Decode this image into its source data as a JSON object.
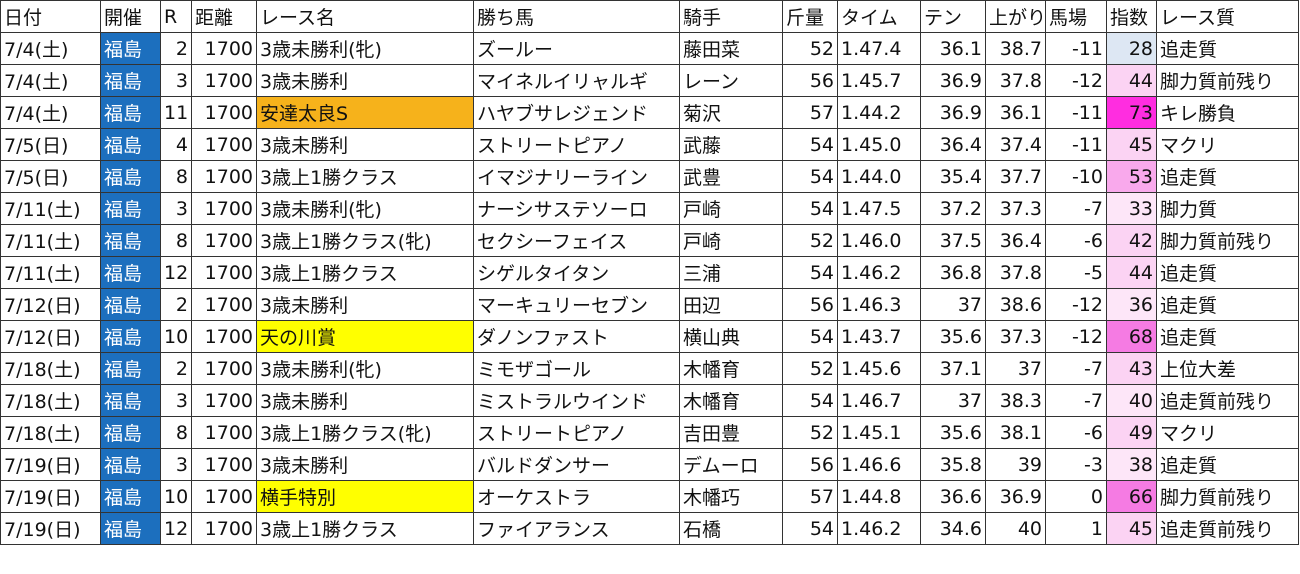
{
  "headers": [
    "日付",
    "開催",
    "R",
    "距離",
    "レース名",
    "勝ち馬",
    "騎手",
    "斤量",
    "タイム",
    "テン",
    "上がり",
    "馬場",
    "指数",
    "レース質"
  ],
  "colors": {
    "venue_bg": "#1c6fbe",
    "grade_orange": "#f6b21b",
    "grade_yellow": "#ffff00",
    "index_low": "#dde7f3",
    "index_scale": [
      "#fde6f8",
      "#fbd3f3",
      "#f9a9ec",
      "#f57be3",
      "#ff2de0"
    ]
  },
  "rows": [
    {
      "date": "7/4(土)",
      "venue": "福島",
      "r": "2",
      "dist": "1700",
      "race": "3歳未勝利(牝)",
      "winner": "ズールー",
      "jockey": "藤田菜",
      "weight": "52",
      "time": "1.47.4",
      "ten": "36.1",
      "agari": "38.7",
      "baba": "-11",
      "index": "28",
      "quality": "追走質",
      "index_color": "#dde7f3",
      "race_color": ""
    },
    {
      "date": "7/4(土)",
      "venue": "福島",
      "r": "3",
      "dist": "1700",
      "race": "3歳未勝利",
      "winner": "マイネルイリャルギ",
      "jockey": "レーン",
      "weight": "56",
      "time": "1.45.7",
      "ten": "36.9",
      "agari": "37.8",
      "baba": "-12",
      "index": "44",
      "quality": "脚力質前残り",
      "index_color": "#fbd3f3",
      "race_color": ""
    },
    {
      "date": "7/4(土)",
      "venue": "福島",
      "r": "11",
      "dist": "1700",
      "race": "安達太良S",
      "winner": "ハヤブサレジェンド",
      "jockey": "菊沢",
      "weight": "57",
      "time": "1.44.2",
      "ten": "36.9",
      "agari": "36.1",
      "baba": "-11",
      "index": "73",
      "quality": "キレ勝負",
      "index_color": "#ff2de0",
      "race_color": "#f6b21b"
    },
    {
      "date": "7/5(日)",
      "venue": "福島",
      "r": "4",
      "dist": "1700",
      "race": "3歳未勝利",
      "winner": "ストリートピアノ",
      "jockey": "武藤",
      "weight": "54",
      "time": "1.45.0",
      "ten": "36.4",
      "agari": "37.4",
      "baba": "-11",
      "index": "45",
      "quality": "マクリ",
      "index_color": "#fbd3f3",
      "race_color": ""
    },
    {
      "date": "7/5(日)",
      "venue": "福島",
      "r": "8",
      "dist": "1700",
      "race": "3歳上1勝クラス",
      "winner": "イマジナリーライン",
      "jockey": "武豊",
      "weight": "54",
      "time": "1.44.0",
      "ten": "35.4",
      "agari": "37.7",
      "baba": "-10",
      "index": "53",
      "quality": "追走質",
      "index_color": "#f9a9ec",
      "race_color": ""
    },
    {
      "date": "7/11(土)",
      "venue": "福島",
      "r": "3",
      "dist": "1700",
      "race": "3歳未勝利(牝)",
      "winner": "ナーシサステソーロ",
      "jockey": "戸崎",
      "weight": "54",
      "time": "1.47.5",
      "ten": "37.2",
      "agari": "37.3",
      "baba": "-7",
      "index": "33",
      "quality": "脚力質",
      "index_color": "#fde6f8",
      "race_color": ""
    },
    {
      "date": "7/11(土)",
      "venue": "福島",
      "r": "8",
      "dist": "1700",
      "race": "3歳上1勝クラス(牝)",
      "winner": "セクシーフェイス",
      "jockey": "戸崎",
      "weight": "52",
      "time": "1.46.0",
      "ten": "37.5",
      "agari": "36.4",
      "baba": "-6",
      "index": "42",
      "quality": "脚力質前残り",
      "index_color": "#fbd3f3",
      "race_color": ""
    },
    {
      "date": "7/11(土)",
      "venue": "福島",
      "r": "12",
      "dist": "1700",
      "race": "3歳上1勝クラス",
      "winner": "シゲルタイタン",
      "jockey": "三浦",
      "weight": "54",
      "time": "1.46.2",
      "ten": "36.8",
      "agari": "37.8",
      "baba": "-5",
      "index": "44",
      "quality": "追走質",
      "index_color": "#fbd3f3",
      "race_color": ""
    },
    {
      "date": "7/12(日)",
      "venue": "福島",
      "r": "2",
      "dist": "1700",
      "race": "3歳未勝利",
      "winner": "マーキュリーセブン",
      "jockey": "田辺",
      "weight": "56",
      "time": "1.46.3",
      "ten": "37",
      "agari": "38.6",
      "baba": "-12",
      "index": "36",
      "quality": "追走質",
      "index_color": "#fde6f8",
      "race_color": ""
    },
    {
      "date": "7/12(日)",
      "venue": "福島",
      "r": "10",
      "dist": "1700",
      "race": "天の川賞",
      "winner": "ダノンファスト",
      "jockey": "横山典",
      "weight": "54",
      "time": "1.43.7",
      "ten": "35.6",
      "agari": "37.3",
      "baba": "-12",
      "index": "68",
      "quality": "追走質",
      "index_color": "#f57be3",
      "race_color": "#ffff00"
    },
    {
      "date": "7/18(土)",
      "venue": "福島",
      "r": "2",
      "dist": "1700",
      "race": "3歳未勝利(牝)",
      "winner": "ミモザゴール",
      "jockey": "木幡育",
      "weight": "52",
      "time": "1.45.6",
      "ten": "37.1",
      "agari": "37",
      "baba": "-7",
      "index": "43",
      "quality": "上位大差",
      "index_color": "#fbd3f3",
      "race_color": ""
    },
    {
      "date": "7/18(土)",
      "venue": "福島",
      "r": "3",
      "dist": "1700",
      "race": "3歳未勝利",
      "winner": "ミストラルウインド",
      "jockey": "木幡育",
      "weight": "54",
      "time": "1.46.7",
      "ten": "37",
      "agari": "38.3",
      "baba": "-7",
      "index": "40",
      "quality": "追走質前残り",
      "index_color": "#fde6f8",
      "race_color": ""
    },
    {
      "date": "7/18(土)",
      "venue": "福島",
      "r": "8",
      "dist": "1700",
      "race": "3歳上1勝クラス(牝)",
      "winner": "ストリートピアノ",
      "jockey": "吉田豊",
      "weight": "52",
      "time": "1.45.1",
      "ten": "35.6",
      "agari": "38.1",
      "baba": "-6",
      "index": "49",
      "quality": "マクリ",
      "index_color": "#fbd3f3",
      "race_color": ""
    },
    {
      "date": "7/19(日)",
      "venue": "福島",
      "r": "3",
      "dist": "1700",
      "race": "3歳未勝利",
      "winner": "バルドダンサー",
      "jockey": "デムーロ",
      "weight": "56",
      "time": "1.46.6",
      "ten": "35.8",
      "agari": "39",
      "baba": "-3",
      "index": "38",
      "quality": "追走質",
      "index_color": "#fde6f8",
      "race_color": ""
    },
    {
      "date": "7/19(日)",
      "venue": "福島",
      "r": "10",
      "dist": "1700",
      "race": "横手特別",
      "winner": "オーケストラ",
      "jockey": "木幡巧",
      "weight": "57",
      "time": "1.44.8",
      "ten": "36.6",
      "agari": "36.9",
      "baba": "0",
      "index": "66",
      "quality": "脚力質前残り",
      "index_color": "#f57be3",
      "race_color": "#ffff00"
    },
    {
      "date": "7/19(日)",
      "venue": "福島",
      "r": "12",
      "dist": "1700",
      "race": "3歳上1勝クラス",
      "winner": "ファイアランス",
      "jockey": "石橋",
      "weight": "54",
      "time": "1.46.2",
      "ten": "34.6",
      "agari": "40",
      "baba": "1",
      "index": "45",
      "quality": "追走質前残り",
      "index_color": "#fbd3f3",
      "race_color": ""
    }
  ]
}
